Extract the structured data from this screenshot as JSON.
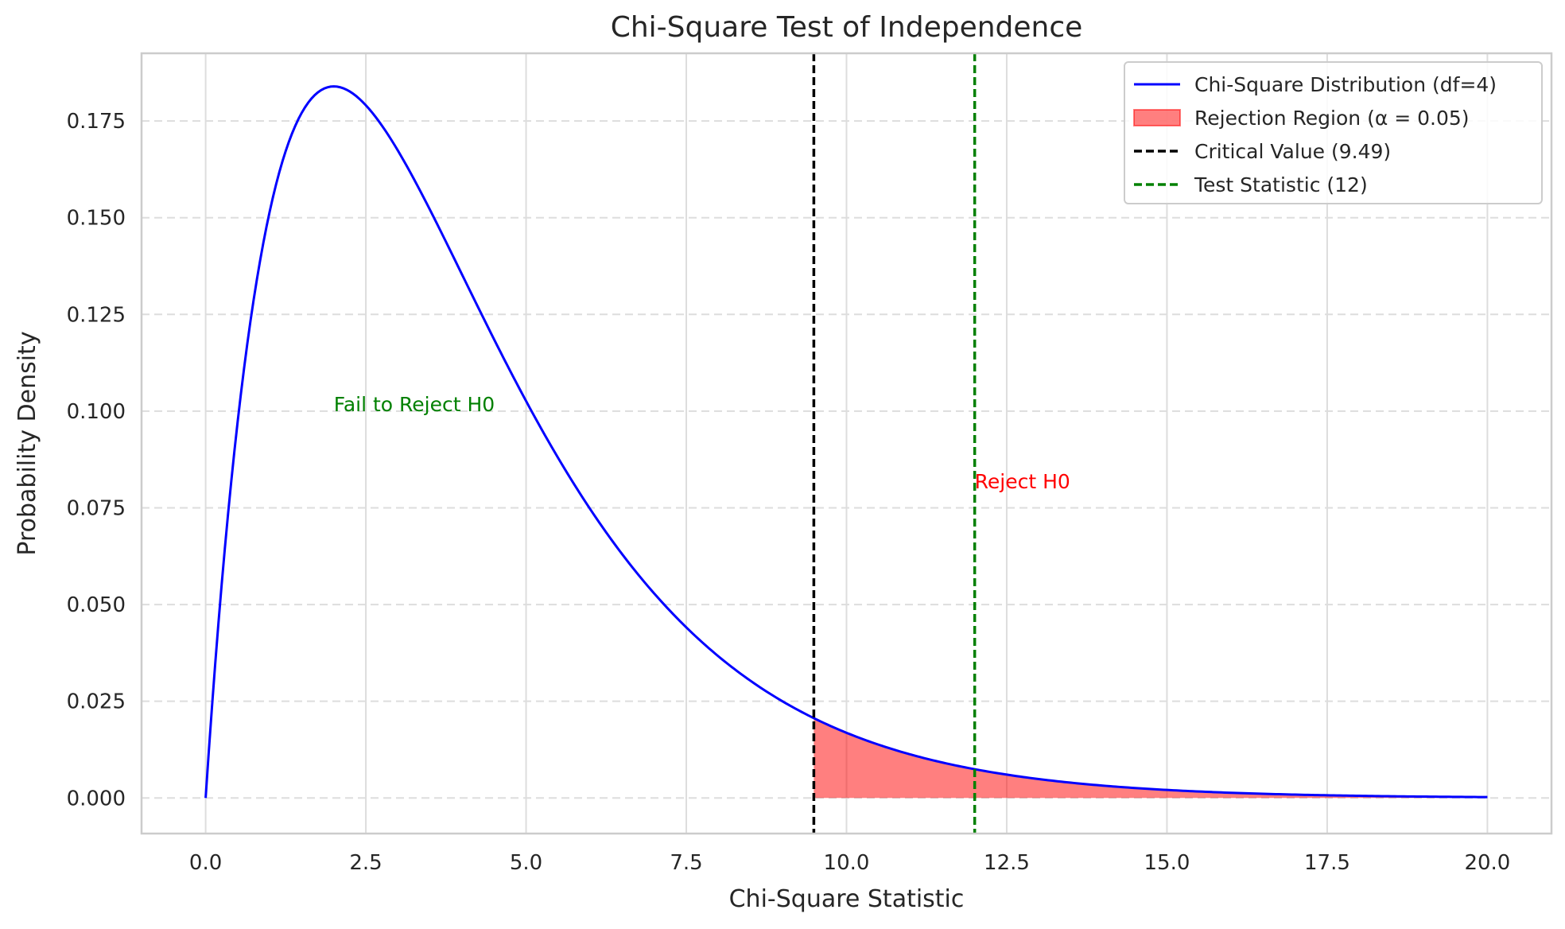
{
  "chart_data": {
    "type": "line",
    "title": "Chi-Square Test of Independence",
    "xlabel": "Chi-Square Statistic",
    "ylabel": "Probability Density",
    "xlim": [
      -1.0,
      21.0
    ],
    "ylim": [
      -0.0092,
      0.1925
    ],
    "x_ticks": [
      0.0,
      2.5,
      5.0,
      7.5,
      10.0,
      12.5,
      15.0,
      17.5,
      20.0
    ],
    "x_tick_labels": [
      "0.0",
      "2.5",
      "5.0",
      "7.5",
      "10.0",
      "12.5",
      "15.0",
      "17.5",
      "20.0"
    ],
    "y_ticks": [
      0.0,
      0.025,
      0.05,
      0.075,
      0.1,
      0.125,
      0.15,
      0.175
    ],
    "y_tick_labels": [
      "0.000",
      "0.025",
      "0.050",
      "0.075",
      "0.100",
      "0.125",
      "0.150",
      "0.175"
    ],
    "grid": true,
    "legend_position": "top-right",
    "series": [
      {
        "name": "Chi-Square Distribution (df=4)",
        "kind": "line",
        "color": "#0000ff",
        "x": [
          0.0,
          0.25,
          0.5,
          0.75,
          1.0,
          1.25,
          1.5,
          1.75,
          2.0,
          2.25,
          2.5,
          2.75,
          3.0,
          3.25,
          3.5,
          3.75,
          4.0,
          4.5,
          5.0,
          5.5,
          6.0,
          6.5,
          7.0,
          7.5,
          8.0,
          8.5,
          9.0,
          9.5,
          10.0,
          10.5,
          11.0,
          11.5,
          12.0,
          12.5,
          13.0,
          14.0,
          15.0,
          16.0,
          17.0,
          18.0,
          19.0,
          20.0
        ],
        "y": [
          0.0,
          0.0551,
          0.0974,
          0.1289,
          0.1516,
          0.1671,
          0.1771,
          0.1824,
          0.1839,
          0.1825,
          0.1791,
          0.1734,
          0.1673,
          0.16,
          0.1521,
          0.1439,
          0.1353,
          0.1186,
          0.1026,
          0.088,
          0.0747,
          0.063,
          0.0528,
          0.0441,
          0.0366,
          0.0303,
          0.025,
          0.0206,
          0.0168,
          0.0138,
          0.0112,
          0.0091,
          0.0074,
          0.006,
          0.0049,
          0.0032,
          0.0021,
          0.0013,
          0.00086,
          0.00055,
          0.00035,
          0.00023
        ]
      },
      {
        "name": "Rejection Region (α = 0.05)",
        "kind": "area",
        "color": "#ff0000",
        "x_from": 9.49,
        "x_to": 20.0
      },
      {
        "name": "Critical Value (9.49)",
        "kind": "vline",
        "color": "#000000",
        "x": 9.49
      },
      {
        "name": "Test Statistic (12)",
        "kind": "vline",
        "color": "#008000",
        "x": 12
      }
    ],
    "annotations": [
      {
        "text": "Fail to Reject H0",
        "x": 2.0,
        "y": 0.1,
        "color": "#008000"
      },
      {
        "text": "Reject H0",
        "x": 12.0,
        "y": 0.08,
        "color": "#ff0000"
      }
    ]
  }
}
